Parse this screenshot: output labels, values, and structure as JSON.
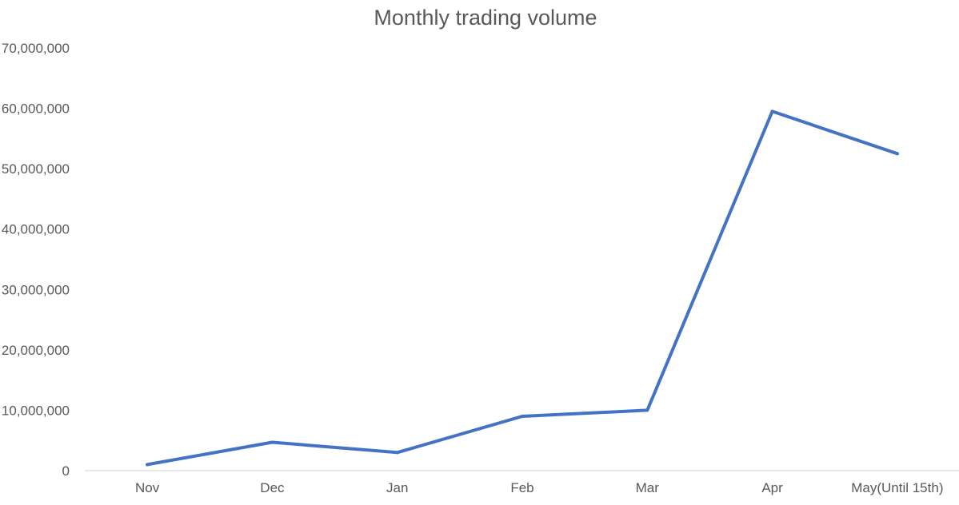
{
  "chart_data": {
    "type": "line",
    "title": "Monthly trading volume",
    "xlabel": "",
    "ylabel": "",
    "categories": [
      "Nov",
      "Dec",
      "Jan",
      "Feb",
      "Mar",
      "Apr",
      "May(Until 15th)"
    ],
    "series": [
      {
        "color": "#4472c4",
        "values": [
          1000000,
          4700000,
          3000000,
          9000000,
          10000000,
          59500000,
          52500000
        ]
      }
    ],
    "ylim": [
      0,
      70000000
    ],
    "yticks": [
      0,
      10000000,
      20000000,
      30000000,
      40000000,
      50000000,
      60000000,
      70000000
    ],
    "ytick_labels": [
      "0",
      "10,000,000",
      "20,000,000",
      "30,000,000",
      "40,000,000",
      "50,000,000",
      "60,000,000",
      "70,000,000"
    ],
    "grid": false,
    "legend": "none"
  }
}
